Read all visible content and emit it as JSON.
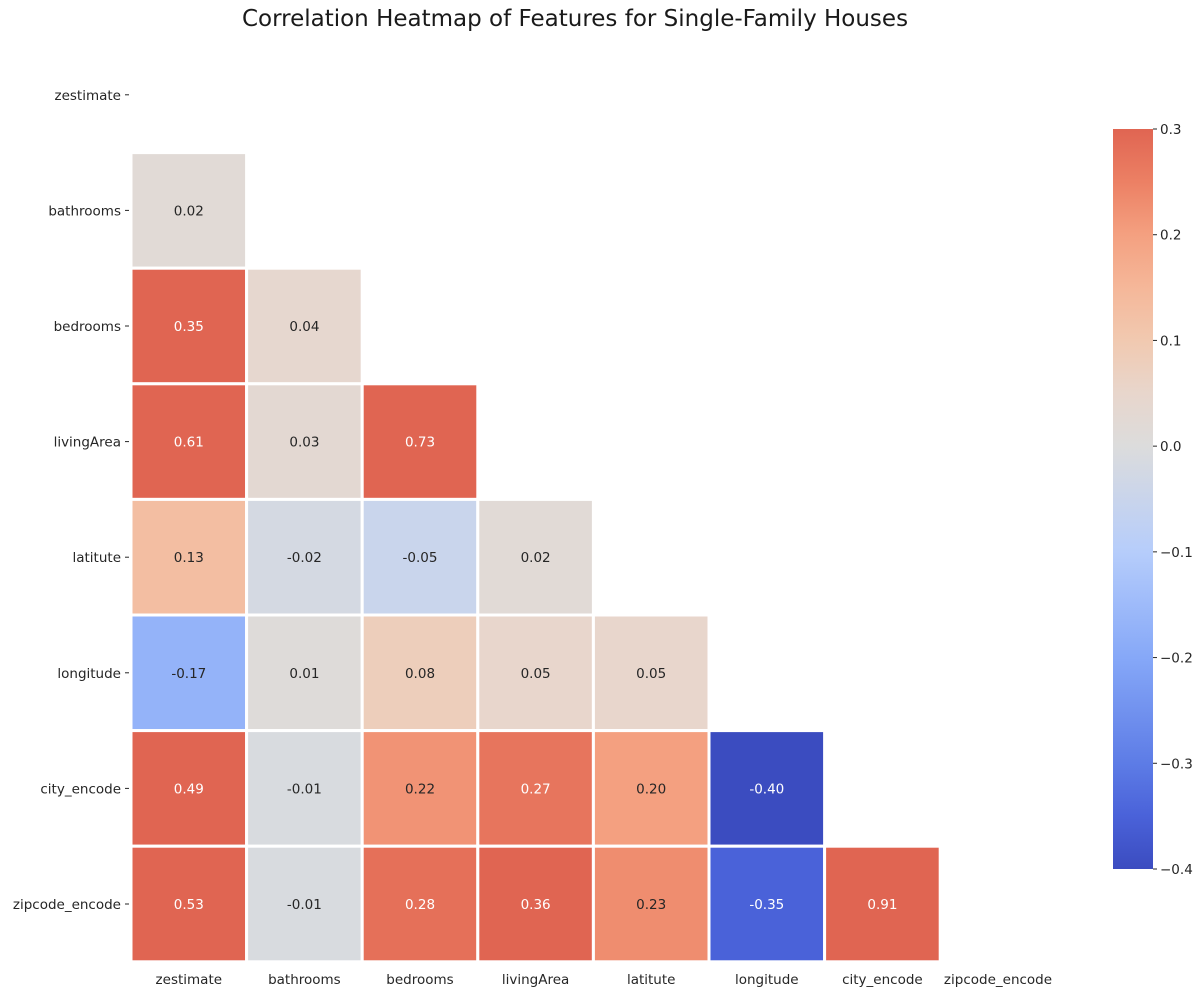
{
  "title": "Correlation Heatmap of Features for Single-Family Houses",
  "colormap": {
    "name": "coolwarm",
    "stops": [
      {
        "v": -0.4,
        "color": "#3b4cc0"
      },
      {
        "v": -0.35,
        "color": "#4a62d9"
      },
      {
        "v": -0.3,
        "color": "#5d7ce6"
      },
      {
        "v": -0.2,
        "color": "#86a8f8"
      },
      {
        "v": -0.1,
        "color": "#b6cdfb"
      },
      {
        "v": 0.0,
        "color": "#dcdcdc"
      },
      {
        "v": 0.05,
        "color": "#e8d6cc"
      },
      {
        "v": 0.1,
        "color": "#f1c9b0"
      },
      {
        "v": 0.15,
        "color": "#f5b799"
      },
      {
        "v": 0.2,
        "color": "#f4a080"
      },
      {
        "v": 0.25,
        "color": "#ec8064"
      },
      {
        "v": 0.3,
        "color": "#e06552"
      }
    ]
  },
  "chart_data": {
    "type": "heatmap",
    "title": "Correlation Heatmap of Features for Single-Family Houses",
    "xlabel": "",
    "ylabel": "",
    "labels": [
      "zestimate",
      "bathrooms",
      "bedrooms",
      "livingArea",
      "latitute",
      "longitude",
      "city_encode",
      "zipcode_encode"
    ],
    "mask": "upper-triangle-including-diagonal",
    "matrix": [
      [
        null,
        null,
        null,
        null,
        null,
        null,
        null,
        null
      ],
      [
        0.02,
        null,
        null,
        null,
        null,
        null,
        null,
        null
      ],
      [
        0.35,
        0.04,
        null,
        null,
        null,
        null,
        null,
        null
      ],
      [
        0.61,
        0.03,
        0.73,
        null,
        null,
        null,
        null,
        null
      ],
      [
        0.13,
        -0.02,
        -0.05,
        0.02,
        null,
        null,
        null,
        null
      ],
      [
        -0.17,
        0.01,
        0.08,
        0.05,
        0.05,
        null,
        null,
        null
      ],
      [
        0.49,
        -0.01,
        0.22,
        0.27,
        0.2,
        -0.4,
        null,
        null
      ],
      [
        0.53,
        -0.01,
        0.28,
        0.36,
        0.23,
        -0.35,
        0.91,
        null
      ]
    ],
    "colorbar": {
      "vmin": -0.4,
      "vmax": 0.3,
      "ticks": [
        0.3,
        0.2,
        0.1,
        0.0,
        -0.1,
        -0.2,
        -0.3,
        -0.4
      ],
      "tick_labels": [
        "0.3",
        "0.2",
        "0.1",
        "0.0",
        "−0.1",
        "−0.2",
        "−0.3",
        "−0.4"
      ]
    }
  }
}
